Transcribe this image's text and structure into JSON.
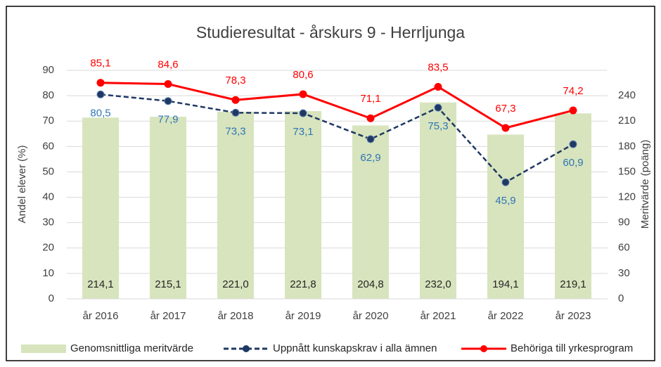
{
  "chart_data": {
    "type": "combo",
    "title": "Studieresultat - årskurs 9 - Herrljunga",
    "y_label": "Andel elever (%)",
    "y2_label": "Meritvärde (poäng)",
    "categories": [
      "år 2016",
      "år 2017",
      "år 2018",
      "år 2019",
      "år 2020",
      "år 2021",
      "år 2022",
      "år 2023"
    ],
    "ylim": [
      0,
      90
    ],
    "yticks": [
      0,
      10,
      20,
      30,
      40,
      50,
      60,
      70,
      80,
      90
    ],
    "y2lim": [
      0,
      270
    ],
    "y2ticks": [
      0,
      30,
      60,
      90,
      120,
      150,
      180,
      210,
      240
    ],
    "grid": true,
    "legend": "bottom",
    "series": [
      {
        "name": "Genomsnittliga meritvärde",
        "type": "bar",
        "axis": "y2",
        "color": "#d7e4bd",
        "values": [
          214.1,
          215.1,
          221.0,
          221.8,
          204.8,
          232.0,
          194.1,
          219.1
        ],
        "value_labels": [
          "214,1",
          "215,1",
          "221,0",
          "221,8",
          "204,8",
          "232,0",
          "194,1",
          "219,1"
        ]
      },
      {
        "name": "Uppnått kunskapskrav i alla ämnen",
        "type": "line",
        "color": "#1f3864",
        "label_color": "#2e75b6",
        "dashed": true,
        "values": [
          80.5,
          77.9,
          73.3,
          73.1,
          62.9,
          75.3,
          45.9,
          60.9
        ],
        "value_labels": [
          "80,5",
          "77,9",
          "73,3",
          "73,1",
          "62,9",
          "75,3",
          "45,9",
          "60,9"
        ]
      },
      {
        "name": "Behöriga till yrkesprogram",
        "type": "line",
        "color": "#ff0000",
        "label_color": "#ff0000",
        "dashed": false,
        "values": [
          85.1,
          84.6,
          78.3,
          80.6,
          71.1,
          83.5,
          67.3,
          74.2
        ],
        "value_labels": [
          "85,1",
          "84,6",
          "78,3",
          "80,6",
          "71,1",
          "83,5",
          "67,3",
          "74,2"
        ]
      }
    ]
  }
}
